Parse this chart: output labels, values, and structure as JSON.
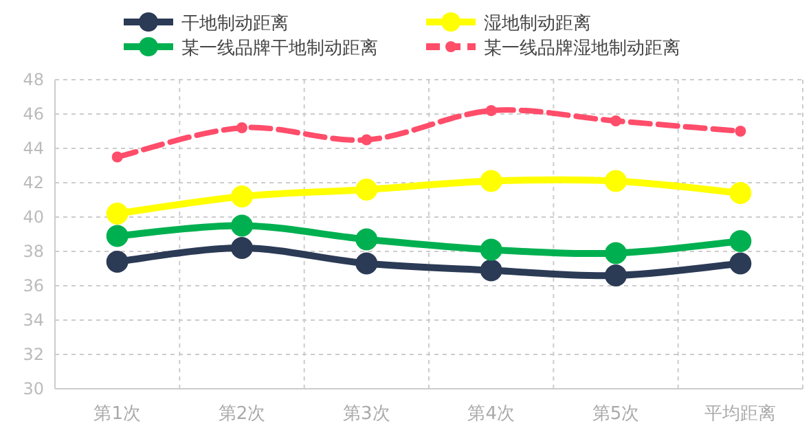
{
  "chart_data": {
    "type": "line",
    "categories": [
      "第1次",
      "第2次",
      "第3次",
      "第4次",
      "第5次",
      "平均距离"
    ],
    "series": [
      {
        "name": "干地制动距离",
        "color": "#2b3a55",
        "values": [
          37.4,
          38.2,
          37.3,
          36.9,
          36.6,
          37.3
        ],
        "marker": "circle",
        "line_style": "solid"
      },
      {
        "name": "湿地制动距离",
        "color": "#ffff00",
        "values": [
          40.2,
          41.2,
          41.6,
          42.1,
          42.1,
          41.4
        ],
        "marker": "circle",
        "line_style": "solid"
      },
      {
        "name": "某一线品牌干地制动距离",
        "color": "#00b050",
        "values": [
          38.9,
          39.5,
          38.7,
          38.1,
          37.9,
          38.6
        ],
        "marker": "circle",
        "line_style": "solid"
      },
      {
        "name": "某一线品牌湿地制动距离",
        "color": "#ff4d6a",
        "values": [
          43.5,
          45.2,
          44.5,
          46.2,
          45.6,
          45.0
        ],
        "marker": "circle",
        "line_style": "dashed"
      }
    ],
    "ylim": [
      30,
      48
    ],
    "yticks": [
      30,
      32,
      34,
      36,
      38,
      40,
      42,
      44,
      46,
      48
    ],
    "grid": true,
    "legend": "top"
  }
}
